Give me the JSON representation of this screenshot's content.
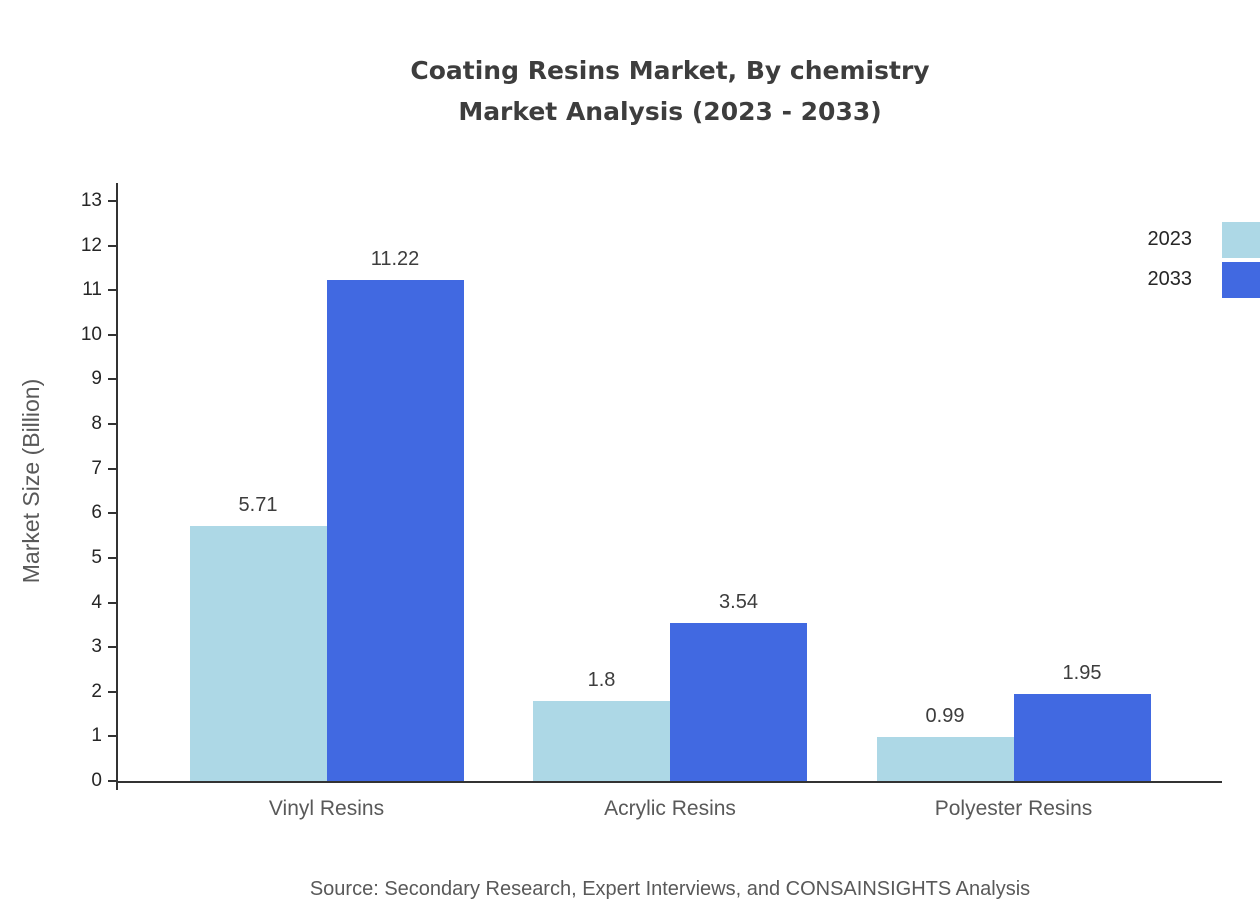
{
  "title": {
    "line1": "Coating Resins Market, By chemistry",
    "line2": "Market Analysis (2023 - 2033)"
  },
  "source": "Source: Secondary Research, Expert Interviews, and CONSAINSIGHTS Analysis",
  "chart_data": {
    "type": "bar",
    "title": "Coating Resins Market, By chemistry Market Analysis (2023 - 2033)",
    "categories": [
      "Vinyl Resins",
      "Acrylic Resins",
      "Polyester Resins"
    ],
    "series": [
      {
        "name": "2023",
        "color": "#add8e6",
        "values": [
          5.71,
          1.8,
          0.99
        ]
      },
      {
        "name": "2033",
        "color": "#4169e1",
        "values": [
          11.22,
          3.54,
          1.95
        ]
      }
    ],
    "xlabel": "",
    "ylabel": "Market Size (Billion)",
    "ylim": [
      0,
      13
    ],
    "ytick_step": 1,
    "grid": false,
    "legend_position": "top-right"
  }
}
